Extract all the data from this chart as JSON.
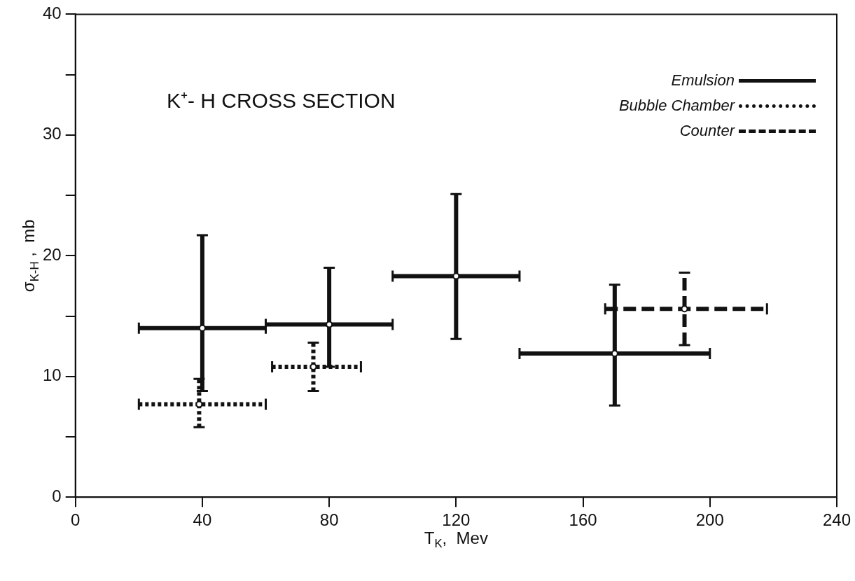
{
  "chart_data": {
    "type": "scatter",
    "title": "K⁺- H CROSS SECTION",
    "xlabel": "T$_{K}$,  Mev",
    "ylabel": "σ$_{K-H}$ ,  mb",
    "xlim": [
      0,
      240
    ],
    "xticks": [
      0,
      40,
      80,
      120,
      160,
      200,
      240
    ],
    "ylim": [
      0,
      40
    ],
    "yticks": [
      0,
      {
        "value": 5,
        "label": null
      },
      10,
      {
        "value": 15,
        "label": null
      },
      20,
      {
        "value": 25,
        "label": null
      },
      30,
      {
        "value": 35,
        "label": null
      },
      40
    ],
    "grid": false,
    "legend": "top right",
    "marker": "circle",
    "series": [
      {
        "name": "Emulsion",
        "color": "#111111",
        "line_style": "solid",
        "x": [
          40,
          80,
          120,
          170
        ],
        "values": [
          14,
          14.3,
          18.3,
          11.9
        ],
        "errors": [
          [
            8.8,
            21.7
          ],
          [
            10.8,
            19
          ],
          [
            13.1,
            25.1
          ],
          [
            7.6,
            17.6
          ]
        ],
        "xerrors": [
          [
            20,
            60
          ],
          [
            60,
            100
          ],
          [
            100,
            140
          ],
          [
            140,
            200
          ]
        ]
      },
      {
        "name": "Bubble Chamber",
        "color": "#111111",
        "line_style": "dotted",
        "x": [
          39,
          75
        ],
        "values": [
          7.7,
          10.8
        ],
        "errors": [
          [
            5.8,
            9.8
          ],
          [
            8.8,
            12.8
          ]
        ],
        "xerrors": [
          [
            20,
            60
          ],
          [
            62,
            90
          ]
        ]
      },
      {
        "name": "Counter",
        "color": "#111111",
        "line_style": "dashed",
        "x": [
          192
        ],
        "values": [
          15.6
        ],
        "errors": [
          [
            12.6,
            18.6
          ]
        ],
        "xerrors": [
          [
            167,
            218
          ]
        ]
      }
    ]
  }
}
